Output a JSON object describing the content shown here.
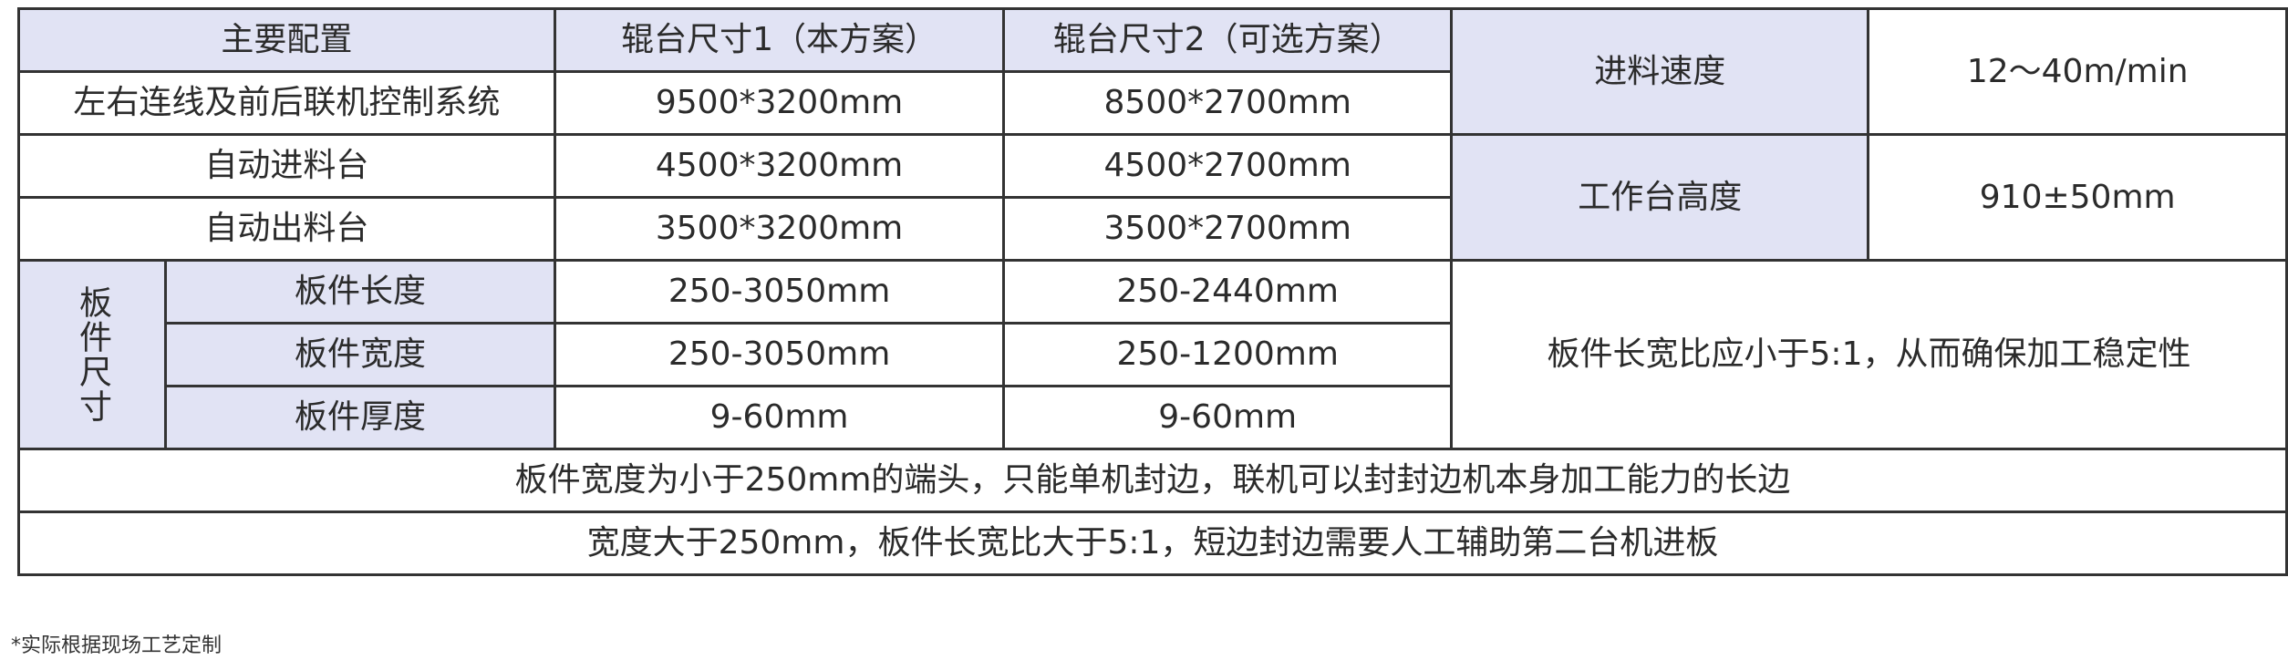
{
  "header": {
    "main_config": "主要配置",
    "roller_size_1": "辊台尺寸1（本方案）",
    "roller_size_2": "辊台尺寸2（可选方案）"
  },
  "rows": [
    {
      "label": "左右连线及前后联机控制系统",
      "size1": "9500*3200mm",
      "size2": "8500*2700mm"
    },
    {
      "label": "自动进料台",
      "size1": "4500*3200mm",
      "size2": "4500*2700mm"
    },
    {
      "label": "自动出料台",
      "size1": "3500*3200mm",
      "size2": "3500*2700mm"
    }
  ],
  "panel_size": {
    "group_label": "板件尺寸",
    "rows": [
      {
        "label": "板件长度",
        "size1": "250-3050mm",
        "size2": "250-2440mm"
      },
      {
        "label": "板件宽度",
        "size1": "250-3050mm",
        "size2": "250-1200mm"
      },
      {
        "label": "板件厚度",
        "size1": "9-60mm",
        "size2": "9-60mm"
      }
    ]
  },
  "specs": {
    "feed_speed_label": "进料速度",
    "feed_speed_value": "12～40m/min",
    "table_height_label": "工作台高度",
    "table_height_value": "910±50mm",
    "ratio_note": "板件长宽比应小于5:1，从而确保加工稳定性"
  },
  "notes": [
    "板件宽度为小于250mm的端头，只能单机封边，联机可以封封边机本身加工能力的长边",
    "宽度大于250mm，板件长宽比大于5:1，短边封边需要人工辅助第二台机进板"
  ],
  "footnote": "*实际根据现场工艺定制",
  "colors": {
    "header_bg": "#e1e3f4",
    "border": "#333333",
    "text": "#2b2b2b"
  }
}
